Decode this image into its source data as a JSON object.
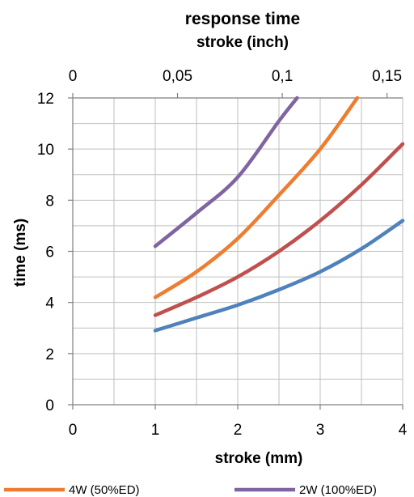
{
  "chart_data": {
    "type": "line",
    "title": "response time",
    "x_secondary_label": "stroke (inch)",
    "xlabel": "stroke (mm)",
    "ylabel": "time (ms)",
    "xlim": [
      0,
      4
    ],
    "ylim": [
      0,
      12
    ],
    "x_ticks": [
      "0",
      "1",
      "2",
      "3",
      "4"
    ],
    "y_ticks": [
      "0",
      "2",
      "4",
      "6",
      "8",
      "10",
      "12"
    ],
    "x_secondary_ticks": [
      {
        "value": 0,
        "label": "0"
      },
      {
        "value": 0.05,
        "label": "0,05"
      },
      {
        "value": 0.1,
        "label": "0,1"
      },
      {
        "value": 0.15,
        "label": "0,15"
      }
    ],
    "grid": true,
    "legend_position": "bottom",
    "series": [
      {
        "name": "4W (50%ED)",
        "color": "#ED7D31",
        "in_legend": true,
        "x": [
          1,
          1.5,
          2,
          2.5,
          3,
          3.45
        ],
        "y": [
          4.2,
          5.2,
          6.5,
          8.2,
          10.0,
          12.0
        ]
      },
      {
        "name": "2W (100%ED)",
        "color": "#8064A2",
        "in_legend": true,
        "x": [
          1,
          1.5,
          2,
          2.5,
          2.72
        ],
        "y": [
          6.2,
          7.5,
          8.9,
          11.1,
          12.0
        ]
      },
      {
        "name": "",
        "color": "#C0504D",
        "in_legend": false,
        "x": [
          1,
          1.5,
          2,
          2.5,
          3,
          3.5,
          4
        ],
        "y": [
          3.5,
          4.2,
          5.0,
          6.0,
          7.2,
          8.6,
          10.2
        ]
      },
      {
        "name": "",
        "color": "#4F81BD",
        "in_legend": false,
        "x": [
          1,
          1.5,
          2,
          2.5,
          3,
          3.5,
          4
        ],
        "y": [
          2.9,
          3.4,
          3.9,
          4.5,
          5.2,
          6.1,
          7.2
        ]
      }
    ]
  }
}
